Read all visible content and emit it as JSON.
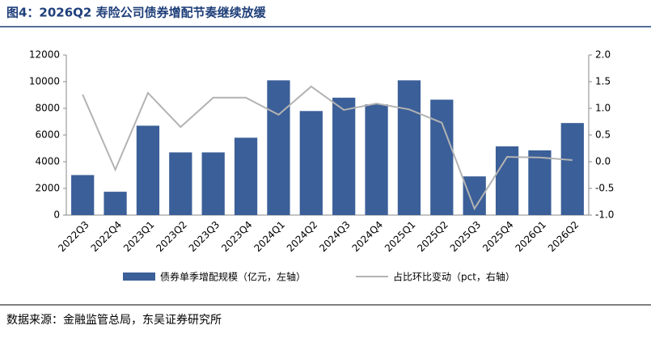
{
  "title": "图4：2026Q2 寿险公司债券增配节奏继续放缓",
  "source": "数据来源：金融监管总局，东吴证券研究所",
  "chart_data": {
    "type": "bar-line",
    "categories": [
      "2022Q3",
      "2022Q4",
      "2023Q1",
      "2023Q2",
      "2023Q3",
      "2023Q4",
      "2024Q1",
      "2024Q2",
      "2024Q3",
      "2024Q4",
      "2025Q1",
      "2025Q2",
      "2025Q3",
      "2025Q4",
      "2026Q1",
      "2026Q2"
    ],
    "series": [
      {
        "name": "债券单季增配规模（亿元，左轴）",
        "type": "bar",
        "color": "#3b5f98",
        "values": [
          3000,
          1750,
          6700,
          4700,
          4700,
          5800,
          10100,
          7800,
          8800,
          8300,
          10100,
          8650,
          2900,
          5150,
          4850,
          6900
        ]
      },
      {
        "name": "占比环比变动（pct，右轴）",
        "type": "line",
        "axis": "y2",
        "color": "#b3b3b3",
        "values": [
          1.26,
          -0.15,
          1.29,
          0.65,
          1.2,
          1.2,
          0.88,
          1.41,
          0.97,
          1.09,
          0.98,
          0.73,
          -0.88,
          0.09,
          0.08,
          0.03
        ]
      }
    ],
    "ylim": [
      0,
      12000
    ],
    "yticks": [
      0,
      2000,
      4000,
      6000,
      8000,
      10000,
      12000
    ],
    "y2lim": [
      -1,
      2
    ],
    "y2ticks": [
      {
        "value": -1,
        "label": "-1.0"
      },
      -0.5,
      {
        "value": 0,
        "label": "0.0"
      },
      0.5,
      {
        "value": 1,
        "label": "1.0"
      },
      1.5,
      {
        "value": 2,
        "label": "2.0"
      }
    ]
  }
}
